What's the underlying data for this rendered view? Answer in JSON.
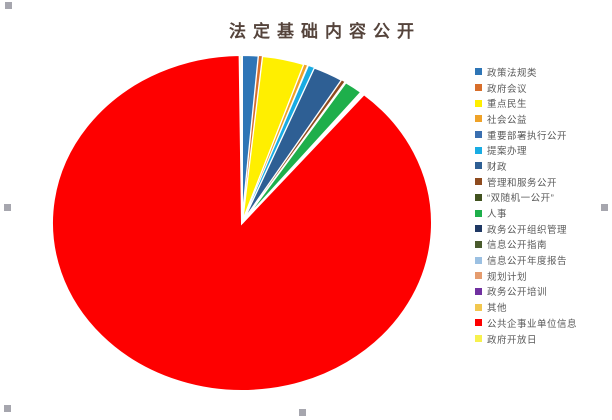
{
  "title": "法定基础内容公开",
  "chart_data": {
    "type": "pie",
    "title": "法定基础内容公开",
    "legend_position": "right",
    "start_angle_deg": 0,
    "direction": "clockwise",
    "categories": [
      "政策法规类",
      "政府会议",
      "重点民生",
      "社会公益",
      "重要部署执行公开",
      "提案办理",
      "财政",
      "管理和服务公开",
      "“双随机一公开”",
      "人事",
      "政务公开组织管理",
      "信息公开指南",
      "信息公开年度报告",
      "规划计划",
      "政务公开培训",
      "其他",
      "公共企事业单位信息",
      "政府开放日"
    ],
    "values": [
      1.4,
      0.3,
      3.6,
      0.3,
      0.1,
      0.5,
      2.6,
      0.3,
      0.1,
      1.6,
      0.05,
      0.05,
      0.05,
      0.05,
      0.05,
      0.05,
      88.7,
      0.2
    ],
    "colors": [
      "#2E75B6",
      "#D86E2A",
      "#FFEF00",
      "#EFA228",
      "#3A6FB0",
      "#19ACE3",
      "#2E5F94",
      "#8E4B1F",
      "#41521F",
      "#1EAF4B",
      "#1F3864",
      "#4A5B2D",
      "#9BC0E2",
      "#E59C6E",
      "#7030A0",
      "#F2C74F",
      "#FE0000",
      "#F7F14E"
    ]
  },
  "decorations": {
    "handle_color": "#A6A6AE",
    "title_color": "#55443C",
    "legend_text_color": "#595959",
    "slice_border_color": "#FFFFFF"
  }
}
